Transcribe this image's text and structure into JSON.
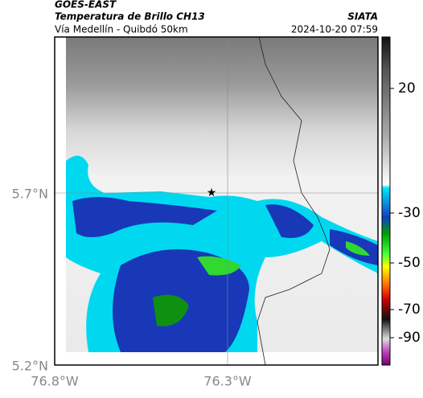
{
  "header": {
    "satellite": "GOES-EAST",
    "product": "Temperatura de Brillo CH13",
    "region": "Vía Medellín - Quibdó 50km",
    "source": "SIATA",
    "datetime": "2024-10-20 07:59"
  },
  "map": {
    "lat_labels": [
      "5.7°N",
      "5.2°N"
    ],
    "lon_labels": [
      "76.8°W",
      "76.3°W"
    ]
  },
  "colorbar": {
    "ticks": [
      20,
      -30,
      -50,
      -70,
      -90
    ]
  }
}
